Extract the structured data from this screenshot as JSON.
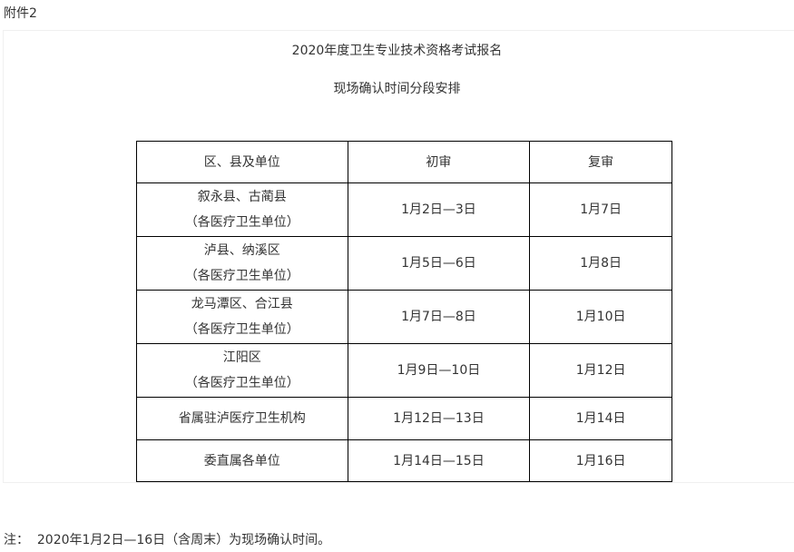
{
  "attachment": "附件2",
  "title_line1": "2020年度卫生专业技术资格考试报名",
  "title_line2": "现场确认时间分段安排",
  "table": {
    "headers": [
      "区、县及单位",
      "初审",
      "复审"
    ],
    "rows": [
      {
        "unit": "叙永县、古蔺县",
        "sub": "（各医疗卫生单位）",
        "first": "1月2日—3日",
        "second": "1月7日"
      },
      {
        "unit": "泸县、纳溪区",
        "sub": "（各医疗卫生单位）",
        "first": "1月5日—6日",
        "second": "1月8日"
      },
      {
        "unit": "龙马潭区、合江县",
        "sub": "（各医疗卫生单位）",
        "first": "1月7日—8日",
        "second": "1月10日"
      },
      {
        "unit": "江阳区",
        "sub": "（各医疗卫生单位）",
        "first": "1月9日—10日",
        "second": "1月12日"
      },
      {
        "unit": "省属驻泸医疗卫生机构",
        "first": "1月12日—13日",
        "second": "1月14日"
      },
      {
        "unit": "委直属各单位",
        "first": "1月14日—15日",
        "second": "1月16日"
      }
    ]
  },
  "note": "注：  2020年1月2日—16日（含周末）为现场确认时间。"
}
